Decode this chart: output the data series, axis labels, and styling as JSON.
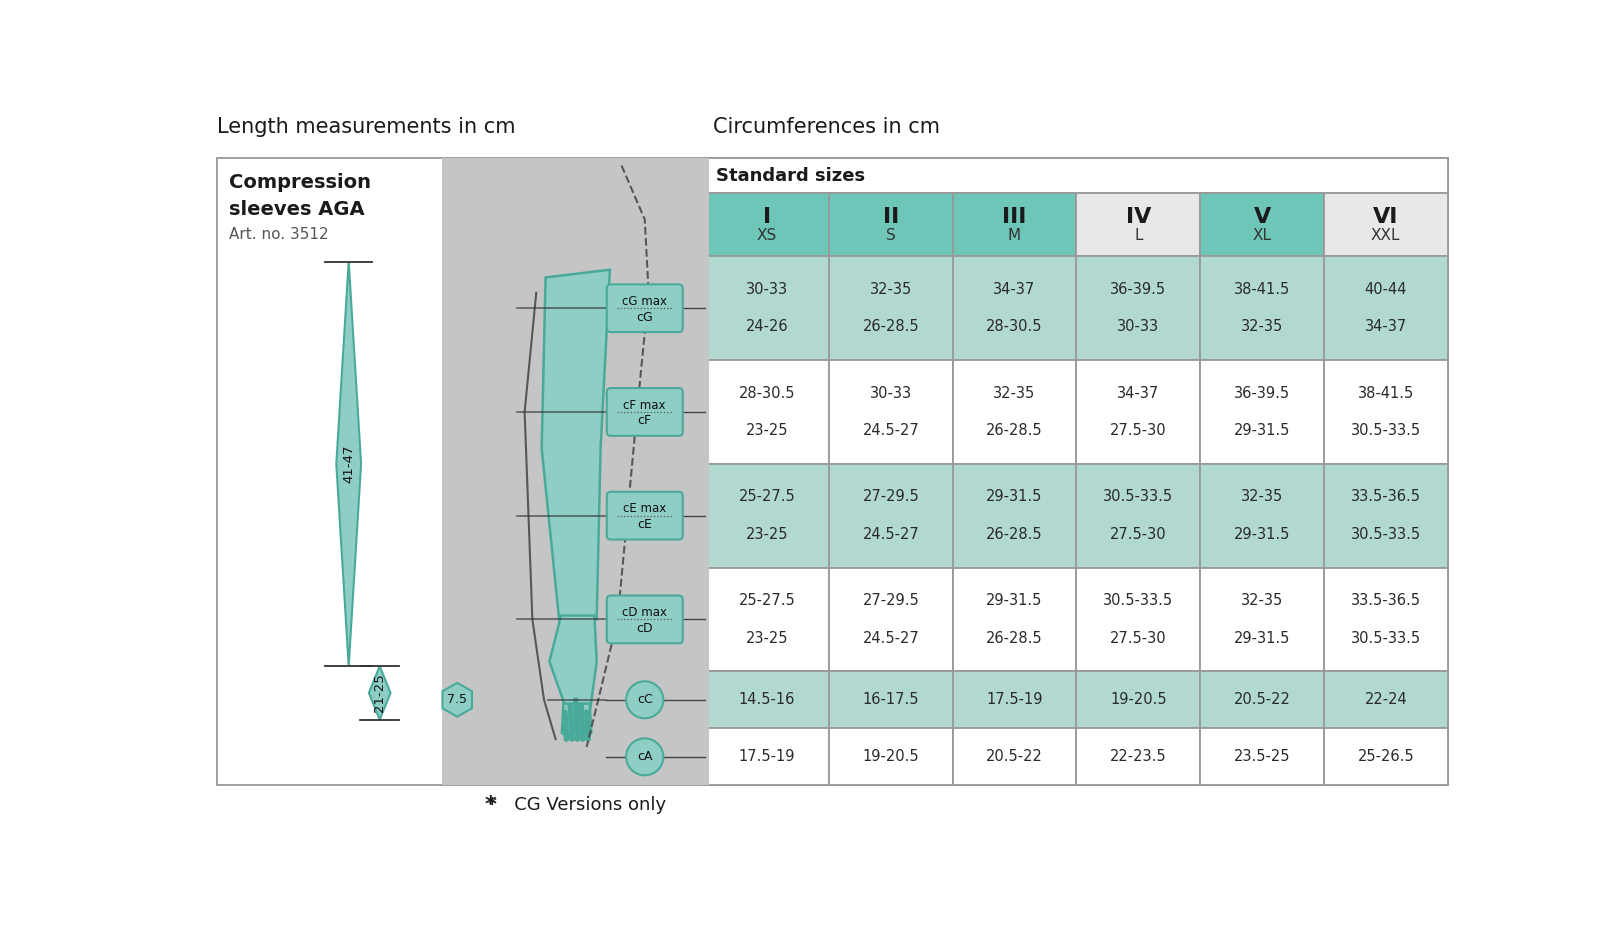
{
  "title_left": "Length measurements in cm",
  "title_right": "Circumferences in cm",
  "standard_sizes_label": "Standard sizes",
  "col_headers": [
    {
      "roman": "I",
      "sub": "XS"
    },
    {
      "roman": "II",
      "sub": "S"
    },
    {
      "roman": "III",
      "sub": "M"
    },
    {
      "roman": "IV",
      "sub": "L"
    },
    {
      "roman": "V",
      "sub": "XL"
    },
    {
      "roman": "VI",
      "sub": "XXL"
    }
  ],
  "header_colors": [
    "#6ec6b8",
    "#6ec6b8",
    "#6ec6b8",
    "#e8e8e8",
    "#6ec6b8",
    "#e8e8e8"
  ],
  "rows": [
    {
      "label": "cG",
      "label2": "cG max",
      "data": [
        "30-33\n24-26",
        "32-35\n26-28.5",
        "34-37\n28-30.5",
        "36-39.5\n30-33",
        "38-41.5\n32-35",
        "40-44\n34-37"
      ],
      "double": true
    },
    {
      "label": "cF",
      "label2": "cF max",
      "data": [
        "28-30.5\n23-25",
        "30-33\n24.5-27",
        "32-35\n26-28.5",
        "34-37\n27.5-30",
        "36-39.5\n29-31.5",
        "38-41.5\n30.5-33.5"
      ],
      "double": true
    },
    {
      "label": "cE",
      "label2": "cE max",
      "data": [
        "25-27.5\n23-25",
        "27-29.5\n24.5-27",
        "29-31.5\n26-28.5",
        "30.5-33.5\n27.5-30",
        "32-35\n29-31.5",
        "33.5-36.5\n30.5-33.5"
      ],
      "double": true
    },
    {
      "label": "cD",
      "label2": "cD max",
      "data": [
        "25-27.5\n23-25",
        "27-29.5\n24.5-27",
        "29-31.5\n26-28.5",
        "30.5-33.5\n27.5-30",
        "32-35\n29-31.5",
        "33.5-36.5\n30.5-33.5"
      ],
      "double": true
    },
    {
      "label": "cC",
      "label2": null,
      "data": [
        "14.5-16",
        "16-17.5",
        "17.5-19",
        "19-20.5",
        "20.5-22",
        "22-24"
      ],
      "double": false
    },
    {
      "label": "cA",
      "label2": null,
      "data": [
        "17.5-19",
        "19-20.5",
        "20.5-22",
        "22-23.5",
        "23.5-25",
        "25-26.5"
      ],
      "double": false
    }
  ],
  "row_colors": [
    "#b2d8d2",
    "#ffffff",
    "#b2d8d2",
    "#ffffff",
    "#b2d8d2",
    "#ffffff"
  ],
  "bg_color": "#ffffff",
  "border_color": "#aaaaaa",
  "cell_text_color": "#2a2a2a",
  "arm_color": "#8ecec5",
  "arm_border": "#4aaa99",
  "gray_bg": "#c8c8c8",
  "label_box_color": "#8ecec5",
  "label_box_border": "#4aaa99",
  "footnote": "*   CG Versions only",
  "arm_label1": "41-47",
  "arm_label2": "21-25",
  "arm_label3": "7.5",
  "product_name": "Compression\nsleeves AGA",
  "art_no": "Art. no. 3512",
  "title_fontsize": 15,
  "header_roman_fontsize": 16,
  "header_sub_fontsize": 11,
  "cell_fontsize": 10.5,
  "product_fontsize": 14,
  "artno_fontsize": 11,
  "std_sizes_fontsize": 13
}
